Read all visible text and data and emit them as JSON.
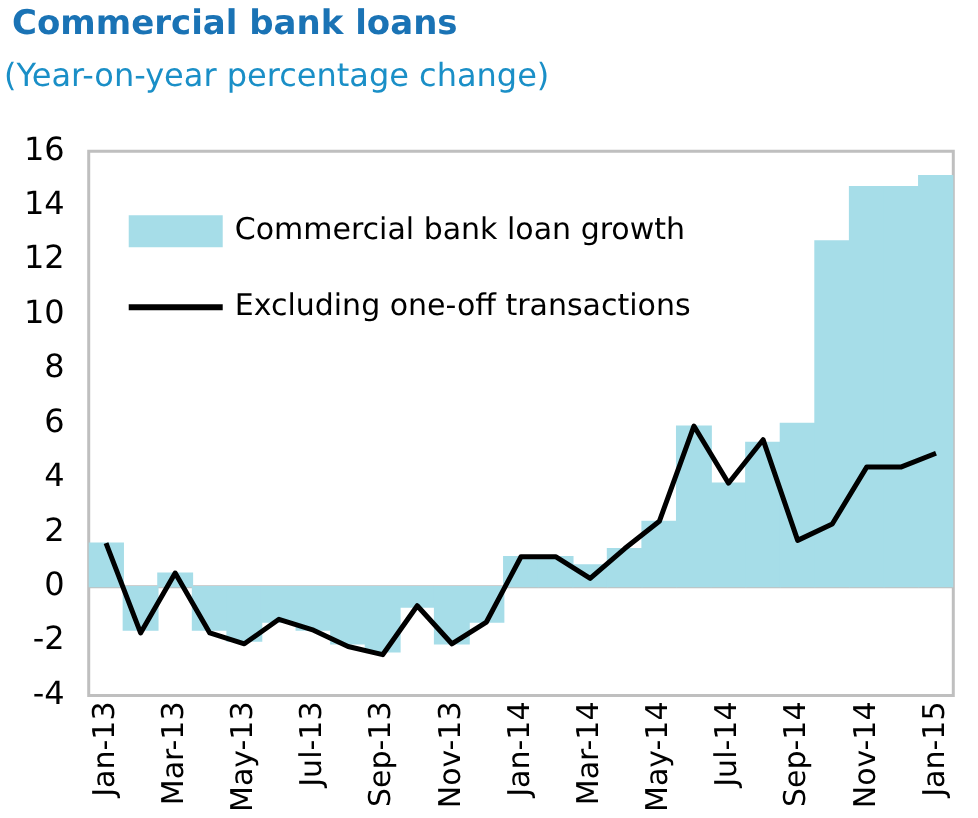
{
  "chart_data": {
    "type": "bar",
    "title": "Commercial bank loans",
    "subtitle": "(Year-on-year percentage change)",
    "categories": [
      "Jan-13",
      null,
      "Mar-13",
      null,
      "May-13",
      null,
      "Jul-13",
      null,
      "Sep-13",
      null,
      "Nov-13",
      null,
      "Jan-14",
      null,
      "Mar-14",
      null,
      "May-14",
      null,
      "Jul-14",
      null,
      "Sep-14",
      null,
      "Nov-14",
      null,
      "Jan-15"
    ],
    "series": [
      {
        "name": "Commercial bank loan growth",
        "color": "#a6dde8",
        "values": [
          1.6,
          -1.6,
          0.5,
          -1.6,
          -2.0,
          -1.3,
          -1.6,
          -2.1,
          -2.4,
          -0.75,
          -2.1,
          -1.3,
          1.1,
          1.1,
          0.8,
          1.4,
          2.4,
          5.9,
          3.8,
          5.3,
          6.0,
          12.7,
          14.7,
          14.7,
          15.1
        ]
      },
      {
        "name": "Excluding one-off transactions",
        "type": "line",
        "color": "#000000",
        "values": [
          1.6,
          -1.7,
          0.5,
          -1.7,
          -2.1,
          -1.2,
          -1.6,
          -2.2,
          -2.5,
          -0.7,
          -2.1,
          -1.3,
          1.1,
          1.1,
          0.3,
          1.4,
          2.4,
          5.9,
          3.8,
          5.4,
          1.7,
          2.3,
          4.4,
          4.4,
          4.9
        ]
      }
    ],
    "ylim": [
      -4,
      16
    ],
    "yticks": [
      -4,
      -2,
      0,
      2,
      4,
      6,
      8,
      10,
      12,
      14,
      16
    ],
    "legend": "top left",
    "marker": "none",
    "line_style": "solid"
  }
}
